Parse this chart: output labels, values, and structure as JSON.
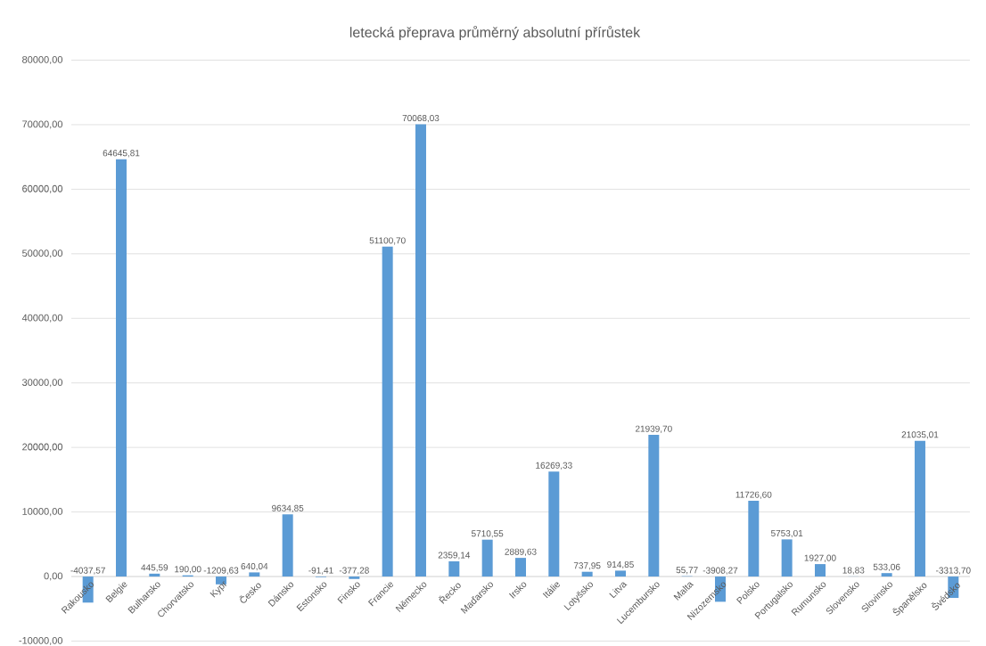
{
  "chart_data": {
    "type": "bar",
    "title": "letecká přeprava průměrný absolutní přírůstek",
    "categories": [
      "Rakousko",
      "Belgie",
      "Bulharsko",
      "Chorvatsko",
      "Kypr",
      "Česko",
      "Dánsko",
      "Estonsko",
      "Finsko",
      "Francie",
      "Německo",
      "Řecko",
      "Maďarsko",
      "Irsko",
      "Itálie",
      "Lotyšsko",
      "Litva",
      "Lucembursko",
      "Malta",
      "Nizozemsko",
      "Polsko",
      "Portugalsko",
      "Rumunsko",
      "Slovensko",
      "Slovinsko",
      "Španělsko",
      "Švédsko"
    ],
    "values": [
      -4037.57,
      64645.81,
      445.59,
      190.0,
      -1209.63,
      640.04,
      9634.85,
      -91.41,
      -377.28,
      51100.7,
      70068.03,
      2359.14,
      5710.55,
      2889.63,
      16269.33,
      737.95,
      914.85,
      21939.7,
      55.77,
      -3908.27,
      11726.6,
      5753.01,
      1927.0,
      18.83,
      533.06,
      21035.01,
      -3313.7
    ],
    "value_labels": [
      "-4037,57",
      "64645,81",
      "445,59",
      "190,00",
      "-1209,63",
      "640,04",
      "9634,85",
      "-91,41",
      "-377,28",
      "51100,70",
      "70068,03",
      "2359,14",
      "5710,55",
      "2889,63",
      "16269,33",
      "737,95",
      "914,85",
      "21939,70",
      "55,77",
      "-3908,27",
      "11726,60",
      "5753,01",
      "1927,00",
      "18,83",
      "533,06",
      "21035,01",
      "-3313,70"
    ],
    "color": "#5b9bd5",
    "ylim": [
      -10000,
      80000
    ],
    "yticks": [
      {
        "value": -10000,
        "label": "-10000,00"
      },
      {
        "value": 0,
        "label": "0,00"
      },
      {
        "value": 10000,
        "label": "10000,00"
      },
      {
        "value": 20000,
        "label": "20000,00"
      },
      {
        "value": 30000,
        "label": "30000,00"
      },
      {
        "value": 40000,
        "label": "40000,00"
      },
      {
        "value": 50000,
        "label": "50000,00"
      },
      {
        "value": 60000,
        "label": "60000,00"
      },
      {
        "value": 70000,
        "label": "70000,00"
      },
      {
        "value": 80000,
        "label": "80000,00"
      }
    ],
    "grid": "y"
  }
}
